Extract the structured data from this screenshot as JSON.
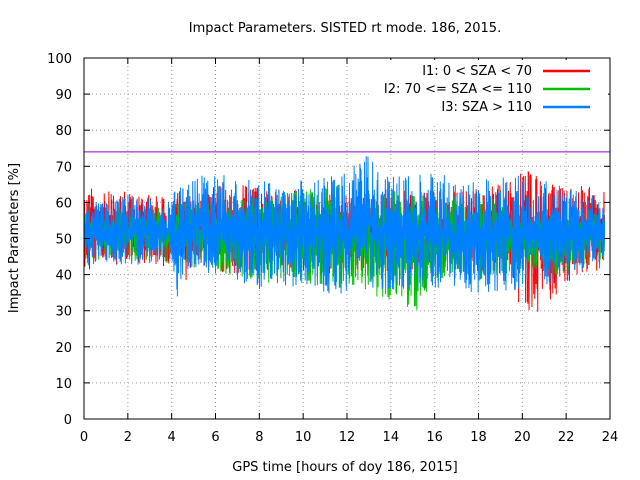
{
  "chart_data": {
    "type": "line",
    "title": "Impact Parameters. SISTED rt mode. 186, 2015.",
    "xlabel": "GPS time [hours of doy 186, 2015]",
    "ylabel": "Impact Parameters [%]",
    "xlim": [
      0,
      24
    ],
    "ylim": [
      0,
      100
    ],
    "x_ticks": [
      0,
      2,
      4,
      6,
      8,
      10,
      12,
      14,
      16,
      18,
      20,
      22,
      24
    ],
    "y_ticks": [
      0,
      10,
      20,
      30,
      40,
      50,
      60,
      70,
      80,
      90,
      100
    ],
    "grid": true,
    "legend_position": "top-right",
    "threshold": {
      "value": 74,
      "color": "#9400d3"
    },
    "series": [
      {
        "name": "I1: 0 < SZA < 70",
        "color": "#ff0000",
        "x_range": [
          0,
          23.75
        ],
        "envelope": {
          "hours": [
            0,
            1,
            2,
            3,
            4,
            4.5,
            5,
            6,
            8,
            10,
            11,
            12,
            14,
            16,
            18,
            19.5,
            20,
            21,
            22,
            23,
            23.75
          ],
          "low": [
            41,
            42,
            43,
            43,
            42,
            36,
            44,
            40,
            41,
            40,
            40,
            41,
            41,
            42,
            41,
            39,
            29,
            30,
            38,
            40,
            42
          ],
          "high": [
            65,
            63,
            64,
            62,
            61,
            64,
            64,
            66,
            64,
            63,
            62,
            63,
            64,
            63,
            64,
            66,
            72,
            66,
            64,
            65,
            63
          ]
        }
      },
      {
        "name": "I2: 70 <= SZA <= 110",
        "color": "#00c000",
        "x_range": [
          0,
          23.75
        ],
        "envelope": {
          "hours": [
            0,
            2,
            4,
            4.5,
            5,
            6,
            8,
            10,
            11,
            12,
            14,
            15,
            16,
            18,
            20,
            22,
            23.75
          ],
          "low": [
            44,
            44,
            43,
            42,
            42,
            41,
            38,
            37,
            37,
            36,
            33,
            28,
            38,
            38,
            40,
            40,
            42
          ],
          "high": [
            60,
            58,
            59,
            60,
            62,
            60,
            62,
            63,
            66,
            64,
            64,
            62,
            62,
            62,
            60,
            58,
            58
          ]
        }
      },
      {
        "name": "I3: SZA > 110",
        "color": "#0080ff",
        "x_range": [
          0,
          23.75
        ],
        "envelope": {
          "hours": [
            0,
            2,
            4,
            4.2,
            4.5,
            5,
            6,
            8,
            10,
            11,
            12,
            12.8,
            14,
            16,
            18,
            20,
            22,
            23.75
          ],
          "low": [
            42,
            43,
            42,
            31,
            40,
            42,
            38,
            36,
            36,
            35,
            34,
            36,
            36,
            36,
            35,
            36,
            38,
            44
          ],
          "high": [
            60,
            62,
            61,
            66,
            64,
            67,
            68,
            67,
            66,
            68,
            68,
            73.5,
            67,
            68,
            66,
            68,
            64,
            61
          ]
        }
      }
    ]
  }
}
